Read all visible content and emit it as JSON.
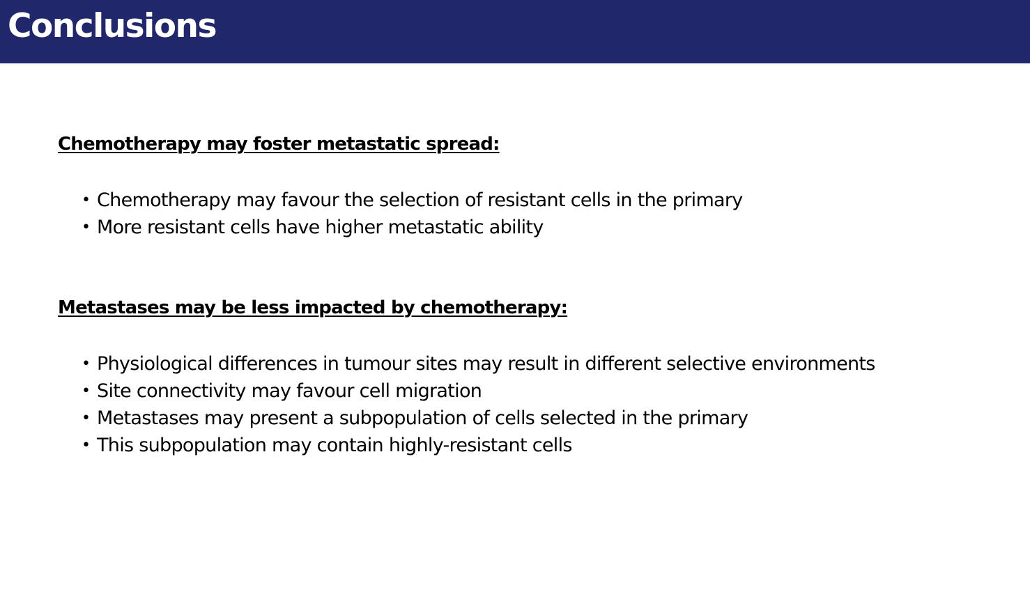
{
  "slide": {
    "title": "Conclusions",
    "colors": {
      "title_bar": "#20276b",
      "title_text": "#ffffff",
      "body_text": "#000000"
    },
    "sections": [
      {
        "heading": "Chemotherapy may foster metastatic spread:",
        "bullets": [
          "Chemotherapy may favour the selection of resistant cells in the primary",
          "More resistant cells have higher metastatic ability"
        ]
      },
      {
        "heading": "Metastases may be less impacted by chemotherapy:",
        "bullets": [
          "Physiological differences in tumour sites may result in different selective environments",
          "Site connectivity may favour cell migration",
          "Metastases may present a subpopulation of cells selected in the primary",
          "This subpopulation may contain highly-resistant cells"
        ]
      }
    ]
  }
}
